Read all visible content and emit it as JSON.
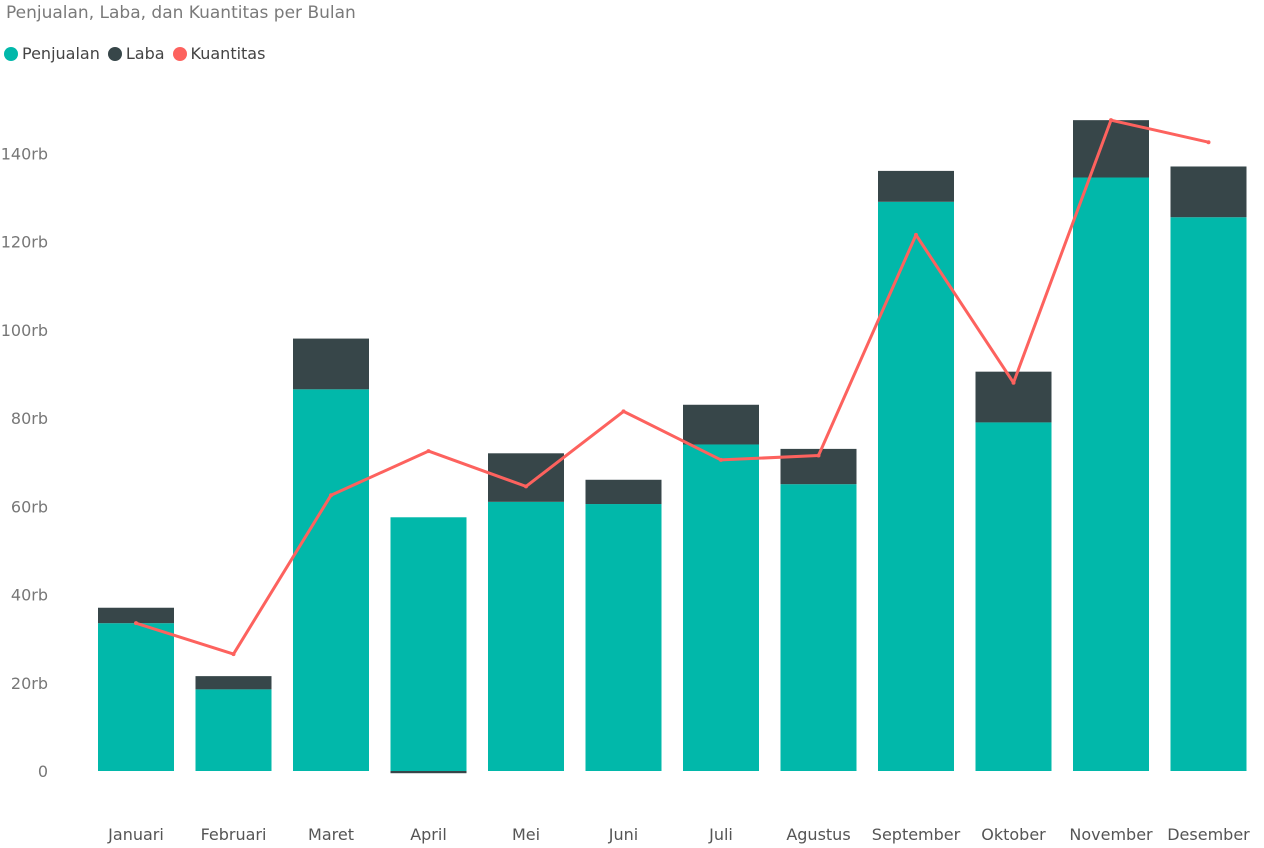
{
  "chart_data": {
    "type": "bar",
    "title": "Penjualan, Laba, dan Kuantitas per Bulan",
    "legend_position": "top-left",
    "categories": [
      "Januari",
      "Februari",
      "Maret",
      "April",
      "Mei",
      "Juni",
      "Juli",
      "Agustus",
      "September",
      "Oktober",
      "November",
      "Desember"
    ],
    "series": [
      {
        "name": "Penjualan",
        "kind": "stacked-bar",
        "values": [
          33500,
          18500,
          86500,
          57500,
          61000,
          60500,
          74000,
          65000,
          129000,
          79000,
          134500,
          125500
        ]
      },
      {
        "name": "Laba",
        "kind": "stacked-bar",
        "values": [
          3500,
          3000,
          11500,
          -500,
          11000,
          5500,
          9000,
          8000,
          7000,
          11500,
          13000,
          11500
        ]
      },
      {
        "name": "Kuantitas",
        "kind": "line",
        "values": [
          33500,
          26500,
          62500,
          72500,
          64500,
          81500,
          70500,
          71500,
          121500,
          88000,
          147500,
          142500
        ]
      }
    ],
    "y_ticks": [
      "0",
      "20rb",
      "40rb",
      "60rb",
      "80rb",
      "100rb",
      "120rb",
      "140rb"
    ],
    "y_tick_values": [
      0,
      20000,
      40000,
      60000,
      80000,
      100000,
      120000,
      140000
    ],
    "ylim": [
      -2000,
      160000
    ],
    "grid": false,
    "colors": {
      "Penjualan": "#01b8aa",
      "Laba": "#374649",
      "Kuantitas": "#fd625e",
      "title": "#7a7a7a",
      "axis_text": "#777777"
    }
  }
}
